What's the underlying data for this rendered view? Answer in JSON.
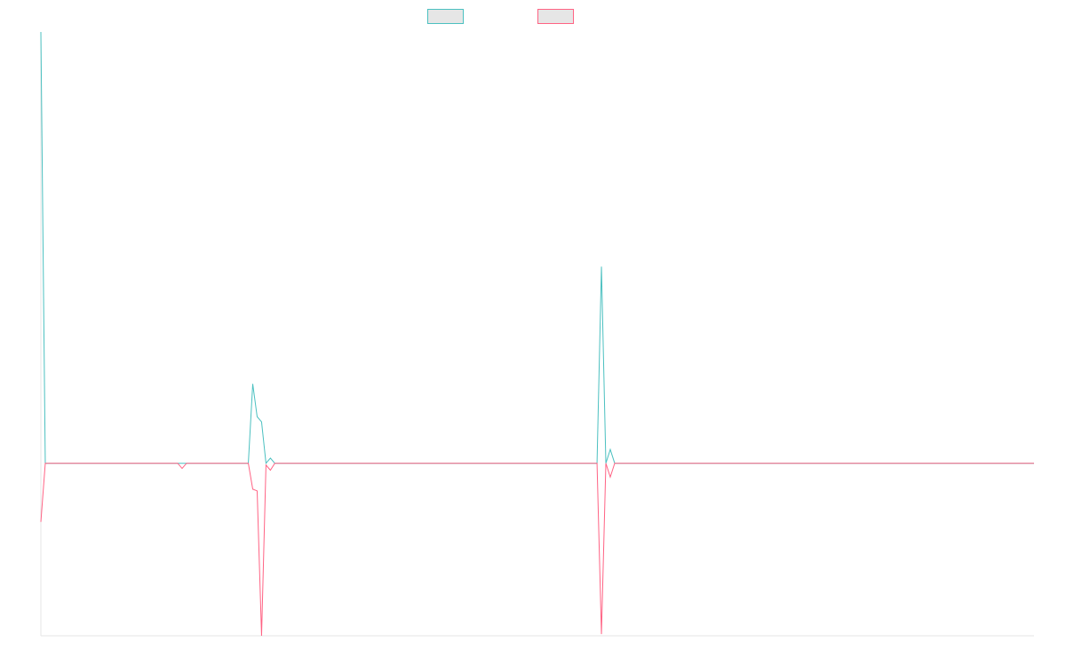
{
  "chart_data": {
    "type": "line",
    "title": "",
    "xlabel": "",
    "ylabel": "",
    "grid": false,
    "legend": "top-center",
    "y_range": [
      -100,
      250
    ],
    "x_range": [
      0,
      225
    ],
    "series": [
      {
        "name": "",
        "color": "#4bc0c0",
        "legend_fill": "#e6e6e6",
        "points": [
          [
            0,
            250
          ],
          [
            1,
            0
          ],
          [
            31,
            0
          ],
          [
            32,
            0
          ],
          [
            33,
            0
          ],
          [
            47,
            0
          ],
          [
            48,
            46
          ],
          [
            49,
            27
          ],
          [
            50,
            24
          ],
          [
            51,
            0
          ],
          [
            52,
            3
          ],
          [
            53,
            0
          ],
          [
            126,
            0
          ],
          [
            127,
            114
          ],
          [
            128,
            0
          ],
          [
            129,
            8
          ],
          [
            130,
            0
          ],
          [
            225,
            0
          ]
        ]
      },
      {
        "name": "",
        "color": "#ff6384",
        "legend_fill": "#e6e6e6",
        "points": [
          [
            0,
            -34
          ],
          [
            1,
            0
          ],
          [
            31,
            0
          ],
          [
            32,
            -3
          ],
          [
            33,
            0
          ],
          [
            47,
            0
          ],
          [
            48,
            -15
          ],
          [
            49,
            -16
          ],
          [
            50,
            -100
          ],
          [
            51,
            -1
          ],
          [
            52,
            -4
          ],
          [
            53,
            0
          ],
          [
            126,
            0
          ],
          [
            127,
            -99
          ],
          [
            128,
            0
          ],
          [
            129,
            -8
          ],
          [
            130,
            0
          ],
          [
            225,
            0
          ]
        ]
      }
    ]
  }
}
